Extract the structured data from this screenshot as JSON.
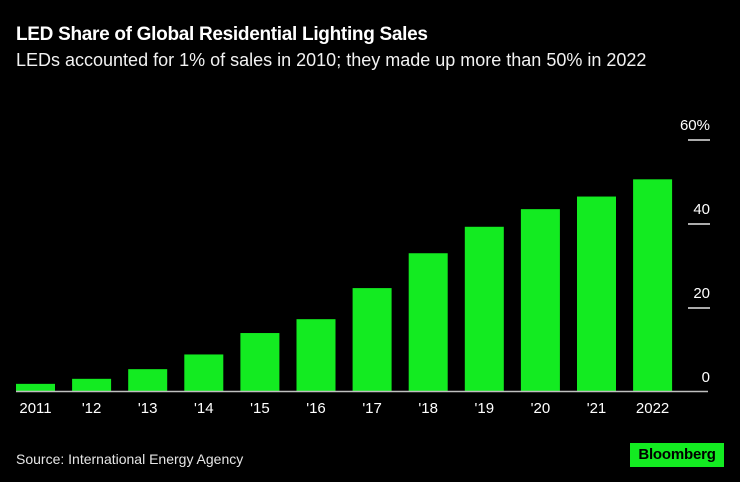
{
  "header": {
    "title": "LED Share of Global Residential Lighting Sales",
    "subtitle": "LEDs accounted for 1% of sales in 2010; they made up more than 50% in 2022"
  },
  "footer": {
    "source": "Source: International Energy Agency",
    "brand": "Bloomberg"
  },
  "colors": {
    "background": "#000000",
    "bar": "#13eb21",
    "text": "#ffffff",
    "axis": "#bfbfbf"
  },
  "chart_data": {
    "type": "bar",
    "title": "LED Share of Global Residential Lighting Sales",
    "subtitle": "LEDs accounted for 1% of sales in 2010; they made up more than 50% in 2022",
    "categories": [
      "2011",
      "'12",
      "'13",
      "'14",
      "'15",
      "'16",
      "'17",
      "'18",
      "'19",
      "'20",
      "'21",
      "2022"
    ],
    "values": [
      1.7,
      2.9,
      5.2,
      8.7,
      13.8,
      17.1,
      24.5,
      32.8,
      39.1,
      43.3,
      46.3,
      50.4
    ],
    "xlabel": "",
    "ylabel": "",
    "ylim": [
      0,
      60
    ],
    "yticks": [
      0,
      20,
      40,
      60
    ],
    "ytick_labels": [
      "0",
      "20",
      "40",
      "60%"
    ],
    "yaxis_side": "right",
    "grid": false,
    "legend": "none",
    "source": "Source: International Energy Agency"
  }
}
